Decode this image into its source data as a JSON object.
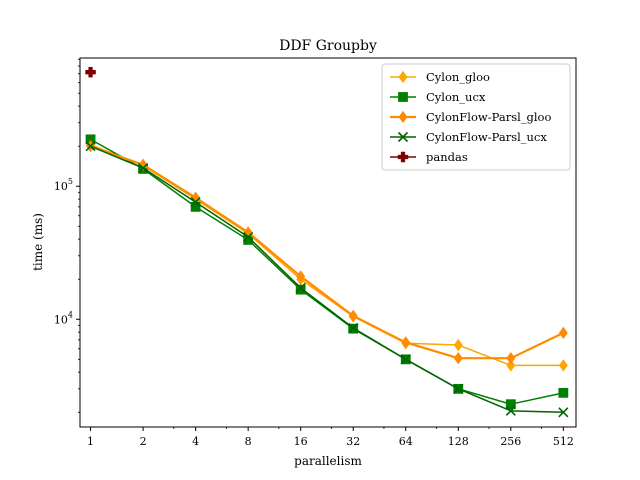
{
  "chart_data": {
    "type": "line",
    "title": "DDF Groupby",
    "xlabel": "parallelism",
    "ylabel": "time (ms)",
    "x_scale": "log2",
    "y_scale": "log10",
    "x_ticks": [
      "1",
      "2",
      "4",
      "8",
      "16",
      "32",
      "64",
      "128",
      "256",
      "512"
    ],
    "y_ticks": [
      {
        "value": 10000,
        "base": "10",
        "exp": "4"
      },
      {
        "value": 100000,
        "base": "10",
        "exp": "5"
      }
    ],
    "xlim": [
      0.87,
      605
    ],
    "ylim": [
      1550,
      920000
    ],
    "grid": false,
    "legend_position": "top-right",
    "series": [
      {
        "name": "Cylon_gloo",
        "color": "#ffa500",
        "marker": "diamond",
        "linewidth": 1.5,
        "x": [
          1,
          2,
          4,
          8,
          16,
          32,
          64,
          128,
          256,
          512
        ],
        "y": [
          205000,
          143000,
          80000,
          44000,
          20000,
          10500,
          6600,
          6400,
          4500,
          4500
        ]
      },
      {
        "name": "Cylon_ucx",
        "color": "#008000",
        "marker": "square",
        "linewidth": 1.5,
        "x": [
          1,
          2,
          4,
          8,
          16,
          32,
          64,
          128,
          256,
          512
        ],
        "y": [
          225000,
          135000,
          70000,
          39500,
          16700,
          8500,
          5000,
          3000,
          2300,
          2800
        ]
      },
      {
        "name": "CylonFlow-Parsl_gloo",
        "color": "#ff8c00",
        "marker": "diamond",
        "linewidth": 2.2,
        "x": [
          1,
          2,
          4,
          8,
          16,
          32,
          64,
          128,
          256,
          512
        ],
        "y": [
          200000,
          145000,
          82000,
          45000,
          21000,
          10600,
          6700,
          5100,
          5100,
          7900
        ]
      },
      {
        "name": "CylonFlow-Parsl_ucx",
        "color": "#006400",
        "marker": "x",
        "linewidth": 1.5,
        "x": [
          1,
          2,
          4,
          8,
          16,
          32,
          64,
          128,
          256,
          512
        ],
        "y": [
          200000,
          137000,
          76000,
          41500,
          17200,
          8600,
          5000,
          3000,
          2050,
          2000
        ]
      },
      {
        "name": "pandas",
        "color": "#800000",
        "marker": "plus",
        "linewidth": 1.5,
        "x": [
          1
        ],
        "y": [
          720000
        ]
      }
    ]
  }
}
